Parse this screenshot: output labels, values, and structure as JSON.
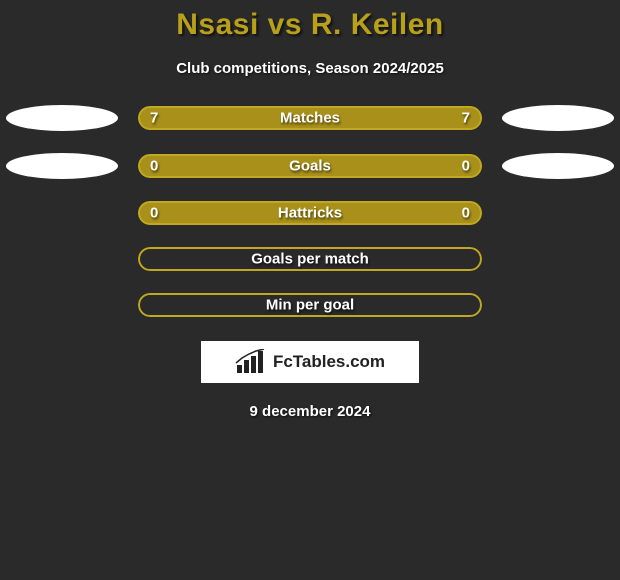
{
  "title": "Nsasi vs R. Keilen",
  "subtitle": "Club competitions, Season 2024/2025",
  "date": "9 december 2024",
  "branding": "FcTables.com",
  "colors": {
    "background": "#2a2a2a",
    "title_color": "#b8a01a",
    "text_color": "#ffffff",
    "bar_fill": "#a8901a",
    "bar_border": "#c0a820",
    "ellipse": "#ffffff"
  },
  "stats": [
    {
      "label": "Matches",
      "left_val": "7",
      "right_val": "7",
      "left_pct": 50,
      "right_pct": 50,
      "show_ellipses": true,
      "filled": true
    },
    {
      "label": "Goals",
      "left_val": "0",
      "right_val": "0",
      "left_pct": 50,
      "right_pct": 50,
      "show_ellipses": true,
      "filled": true
    },
    {
      "label": "Hattricks",
      "left_val": "0",
      "right_val": "0",
      "left_pct": 50,
      "right_pct": 50,
      "show_ellipses": false,
      "filled": true
    },
    {
      "label": "Goals per match",
      "left_val": "",
      "right_val": "",
      "left_pct": 0,
      "right_pct": 0,
      "show_ellipses": false,
      "filled": false
    },
    {
      "label": "Min per goal",
      "left_val": "",
      "right_val": "",
      "left_pct": 0,
      "right_pct": 0,
      "show_ellipses": false,
      "filled": false
    }
  ]
}
